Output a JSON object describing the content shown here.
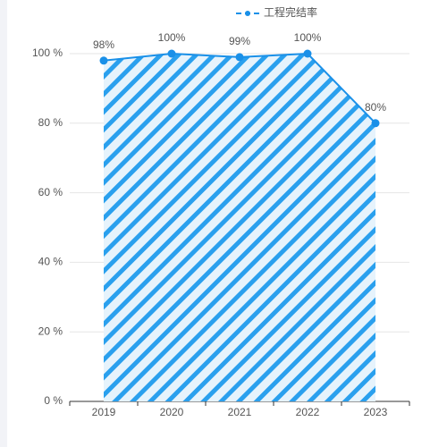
{
  "chart_data": {
    "type": "line",
    "categories": [
      "2019",
      "2020",
      "2021",
      "2022",
      "2023"
    ],
    "series": [
      {
        "name": "工程完结率",
        "color": "#1a90e8",
        "values": [
          98,
          100,
          99,
          100,
          80
        ],
        "value_labels": [
          "98%",
          "100%",
          "99%",
          "100%",
          "80%"
        ]
      }
    ],
    "ylim": [
      0,
      100
    ],
    "yticks": [
      {
        "value": 0,
        "label": "0 %"
      },
      {
        "value": 20,
        "label": "20 %"
      },
      {
        "value": 40,
        "label": "40 %"
      },
      {
        "value": 60,
        "label": "60 %"
      },
      {
        "value": 80,
        "label": "80 %"
      },
      {
        "value": 100,
        "label": "100 %"
      }
    ],
    "grid": true,
    "area": true,
    "legend": "top"
  }
}
